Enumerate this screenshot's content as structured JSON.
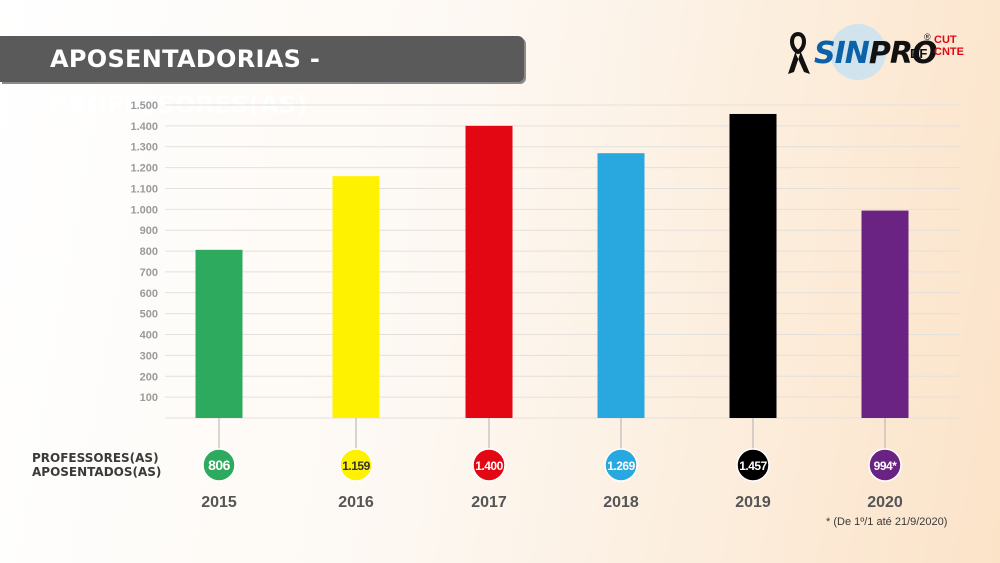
{
  "header": {
    "title": "APOSENTADORIAS - PROFESSORES(AS)"
  },
  "logo": {
    "name_part1": "SIN",
    "name_part2": "PRO",
    "suffix": "DF",
    "reg": "®",
    "cut_line1": "CUT",
    "cut_line2": "CNTE"
  },
  "row_label": {
    "line1": "PROFESSORES(AS)",
    "line2": "APOSENTADOS(AS)"
  },
  "footnote": "* (De 1º/1 até 21/9/2020)",
  "chart_data": {
    "type": "bar",
    "categories": [
      "2015",
      "2016",
      "2017",
      "2018",
      "2019",
      "2020"
    ],
    "values": [
      806,
      1159,
      1400,
      1269,
      1457,
      994
    ],
    "value_labels": [
      "806",
      "1.159",
      "1.400",
      "1.269",
      "1.457",
      "994*"
    ],
    "colors": [
      "#2eaa5e",
      "#fff200",
      "#e30613",
      "#29a8e0",
      "#000000",
      "#6a2382"
    ],
    "label_text_colors": [
      "#ffffff",
      "#333333",
      "#ffffff",
      "#ffffff",
      "#ffffff",
      "#ffffff"
    ],
    "yticks": [
      100,
      200,
      300,
      400,
      500,
      600,
      700,
      800,
      900,
      1000,
      1100,
      1200,
      1300,
      1400,
      1500
    ],
    "ytick_labels": [
      "100",
      "200",
      "300",
      "400",
      "500",
      "600",
      "700",
      "800",
      "900",
      "1.000",
      "1.100",
      "1.200",
      "1.300",
      "1.400",
      "1.500"
    ],
    "ylim": [
      0,
      1500
    ],
    "grid": true,
    "title": "APOSENTADORIAS - PROFESSORES(AS)"
  }
}
